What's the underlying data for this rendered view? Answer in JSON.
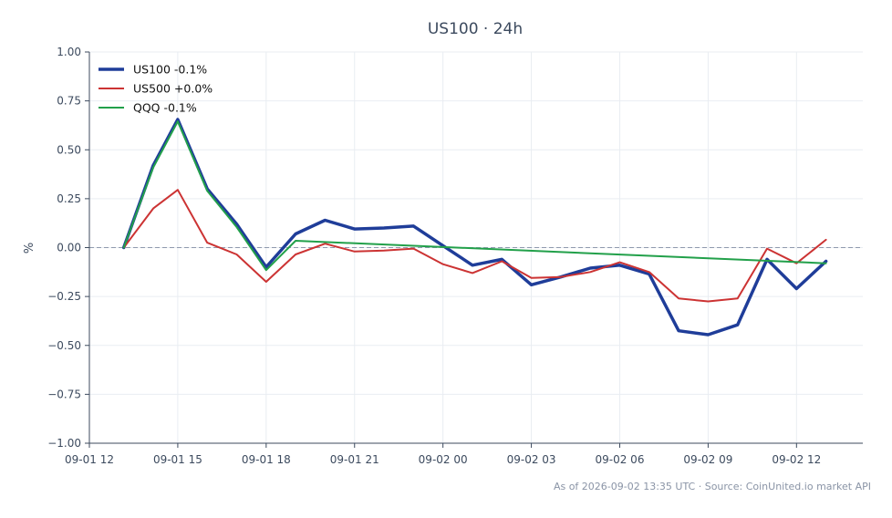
{
  "chart_data": {
    "type": "line",
    "title": "US100 · 24h",
    "xlabel": "",
    "ylabel": "%",
    "ylim": [
      -1.0,
      1.0
    ],
    "xlim": [
      "2026-09-01 12:00",
      "2026-09-02 14:15"
    ],
    "y_ticks": [
      1.0,
      0.75,
      0.5,
      0.25,
      0.0,
      -0.25,
      -0.5,
      -0.75,
      -1.0
    ],
    "y_tick_labels": [
      "1.00",
      "0.75",
      "0.50",
      "0.25",
      "0.00",
      "−0.25",
      "−0.50",
      "−0.75",
      "−1.00"
    ],
    "x_ticks": [
      "2026-09-01 12:00",
      "2026-09-01 15:00",
      "2026-09-01 18:00",
      "2026-09-01 21:00",
      "2026-09-02 00:00",
      "2026-09-02 03:00",
      "2026-09-02 06:00",
      "2026-09-02 09:00",
      "2026-09-02 12:00"
    ],
    "x_tick_labels": [
      "09-01 12",
      "09-01 15",
      "09-01 18",
      "09-01 21",
      "09-02 00",
      "09-02 03",
      "09-02 06",
      "09-02 09",
      "09-02 12"
    ],
    "grid": true,
    "reference_line": 0.0,
    "legend_position": "top-left",
    "series": [
      {
        "name": "US100 -0.1%",
        "color": "#1f3d99",
        "width": 3.5,
        "x": [
          "2026-09-01 13:10",
          "2026-09-01 14:10",
          "2026-09-01 15:00",
          "2026-09-01 16:00",
          "2026-09-01 17:00",
          "2026-09-01 18:00",
          "2026-09-01 19:00",
          "2026-09-01 20:00",
          "2026-09-01 21:00",
          "2026-09-01 22:00",
          "2026-09-01 23:00",
          "2026-09-02 00:00",
          "2026-09-02 01:00",
          "2026-09-02 02:00",
          "2026-09-02 03:00",
          "2026-09-02 04:00",
          "2026-09-02 05:00",
          "2026-09-02 06:00",
          "2026-09-02 07:00",
          "2026-09-02 08:00",
          "2026-09-02 09:00",
          "2026-09-02 10:00",
          "2026-09-02 11:00",
          "2026-09-02 12:00",
          "2026-09-02 13:00"
        ],
        "y": [
          0.0,
          0.42,
          0.655,
          0.3,
          0.12,
          -0.1,
          0.07,
          0.14,
          0.095,
          0.1,
          0.11,
          0.01,
          -0.09,
          -0.06,
          -0.19,
          -0.15,
          -0.105,
          -0.09,
          -0.135,
          -0.425,
          -0.445,
          -0.395,
          -0.06,
          -0.21,
          -0.07
        ]
      },
      {
        "name": "US500 +0.0%",
        "color": "#cc3333",
        "width": 2,
        "x": [
          "2026-09-01 13:10",
          "2026-09-01 14:10",
          "2026-09-01 15:00",
          "2026-09-01 16:00",
          "2026-09-01 17:00",
          "2026-09-01 18:00",
          "2026-09-01 19:00",
          "2026-09-01 20:00",
          "2026-09-01 21:00",
          "2026-09-01 22:00",
          "2026-09-01 23:00",
          "2026-09-02 00:00",
          "2026-09-02 01:00",
          "2026-09-02 02:00",
          "2026-09-02 03:00",
          "2026-09-02 04:00",
          "2026-09-02 05:00",
          "2026-09-02 06:00",
          "2026-09-02 07:00",
          "2026-09-02 08:00",
          "2026-09-02 09:00",
          "2026-09-02 10:00",
          "2026-09-02 11:00",
          "2026-09-02 12:00",
          "2026-09-02 13:00"
        ],
        "y": [
          0.0,
          0.2,
          0.295,
          0.025,
          -0.035,
          -0.175,
          -0.035,
          0.02,
          -0.02,
          -0.015,
          -0.005,
          -0.085,
          -0.13,
          -0.07,
          -0.155,
          -0.15,
          -0.125,
          -0.075,
          -0.125,
          -0.26,
          -0.275,
          -0.26,
          -0.005,
          -0.08,
          0.04
        ]
      },
      {
        "name": "QQQ -0.1%",
        "color": "#22a04a",
        "width": 2,
        "x": [
          "2026-09-01 13:10",
          "2026-09-01 14:10",
          "2026-09-01 15:00",
          "2026-09-01 16:00",
          "2026-09-01 17:00",
          "2026-09-01 18:00",
          "2026-09-01 19:00",
          "2026-09-02 13:00"
        ],
        "y": [
          0.0,
          0.41,
          0.645,
          0.29,
          0.105,
          -0.115,
          0.035,
          -0.08
        ]
      }
    ]
  },
  "footer": {
    "note": "As of 2026-09-02 13:35 UTC · Source: CoinUnited.io market API"
  }
}
